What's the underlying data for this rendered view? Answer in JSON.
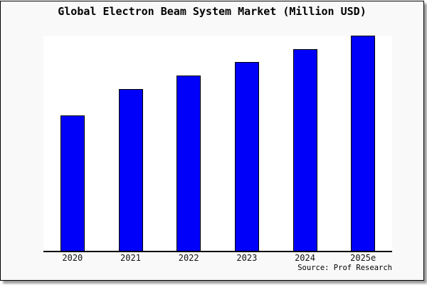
{
  "chart_data": {
    "type": "bar",
    "title": "Global Electron Beam System Market (Million USD)",
    "categories": [
      "2020",
      "2021",
      "2022",
      "2023",
      "2024",
      "2025e"
    ],
    "values": [
      62.9,
      75.2,
      81.5,
      87.8,
      93.7,
      100
    ],
    "value_scale": "relative index, tallest bar (2025e) = 100; y-axis has no tick labels in the figure",
    "xlabel": "",
    "ylabel": "",
    "ylim": [
      0,
      100
    ],
    "grid": false,
    "legend": null,
    "bar_fill": "#0000FA",
    "bar_border": "#000000",
    "plot_background": "#ffffff",
    "figure_background": "#f9f9f9",
    "axis_color": "#000000"
  },
  "footer": {
    "source_label": "Source: Prof Research"
  }
}
